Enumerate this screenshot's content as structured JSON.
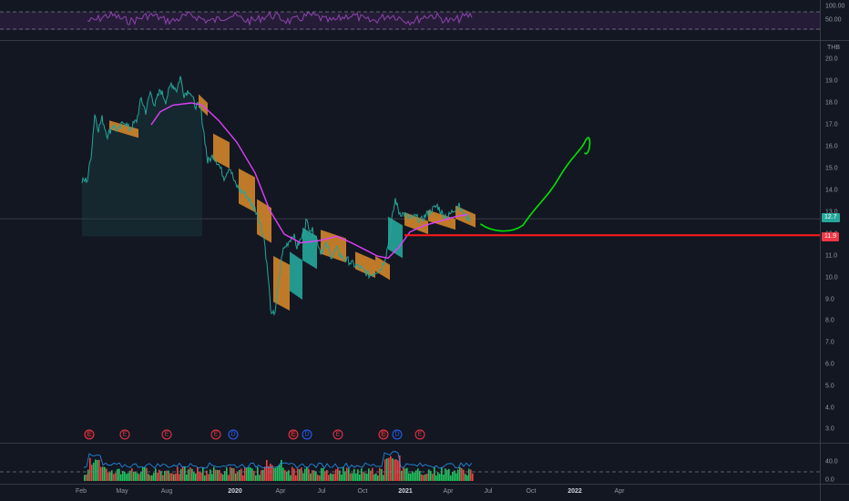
{
  "rsi_pane": {
    "level_labels": [
      "100.00",
      "50.00"
    ]
  },
  "price_axis": {
    "currency": "THB",
    "ticks": [
      "20.0",
      "19.0",
      "18.0",
      "17.0",
      "16.0",
      "15.0",
      "14.0",
      "13.0",
      "12.0",
      "11.0",
      "10.0",
      "9.0",
      "8.0",
      "7.0",
      "6.0",
      "5.0",
      "4.0",
      "3.0"
    ]
  },
  "badges": {
    "last_price": "12.7",
    "horizontal_line_price": "11.9",
    "last_price_color": "#26a69a",
    "line_color": "#f23645"
  },
  "volume_axis": {
    "ticks": [
      "40.0",
      "0.0"
    ]
  },
  "time_axis": {
    "labels": [
      {
        "text": "Feb",
        "bold": false
      },
      {
        "text": "May",
        "bold": false
      },
      {
        "text": "Aug",
        "bold": false
      },
      {
        "text": "2020",
        "bold": true
      },
      {
        "text": "Apr",
        "bold": false
      },
      {
        "text": "Jul",
        "bold": false
      },
      {
        "text": "Oct",
        "bold": false
      },
      {
        "text": "2021",
        "bold": true
      },
      {
        "text": "Apr",
        "bold": false
      },
      {
        "text": "Jul",
        "bold": false
      },
      {
        "text": "Oct",
        "bold": false
      },
      {
        "text": "2022",
        "bold": true
      },
      {
        "text": "Apr",
        "bold": false
      }
    ]
  },
  "events": [
    {
      "label": "E",
      "kind": "earnings",
      "filled": true
    },
    {
      "label": "E",
      "kind": "earnings",
      "filled": false
    },
    {
      "label": "E",
      "kind": "earnings",
      "filled": false
    },
    {
      "label": "E",
      "kind": "earnings",
      "filled": false
    },
    {
      "label": "D",
      "kind": "dividend",
      "filled": false
    },
    {
      "label": "E",
      "kind": "earnings",
      "filled": true
    },
    {
      "label": "D",
      "kind": "dividend",
      "filled": false
    },
    {
      "label": "E",
      "kind": "earnings",
      "filled": false
    },
    {
      "label": "E",
      "kind": "earnings",
      "filled": true
    },
    {
      "label": "D",
      "kind": "dividend",
      "filled": false
    },
    {
      "label": "E",
      "kind": "earnings",
      "filled": false
    }
  ],
  "colors": {
    "background": "#131722",
    "price_line": "#26a69a",
    "moving_average": "#e040fb",
    "cloud_orange": "#d1852a",
    "cloud_teal": "#26a69a",
    "drawing_green": "#00e600",
    "volume_up": "#22c55e",
    "volume_down": "#ef4444",
    "rsi": "#8e44ad"
  }
}
